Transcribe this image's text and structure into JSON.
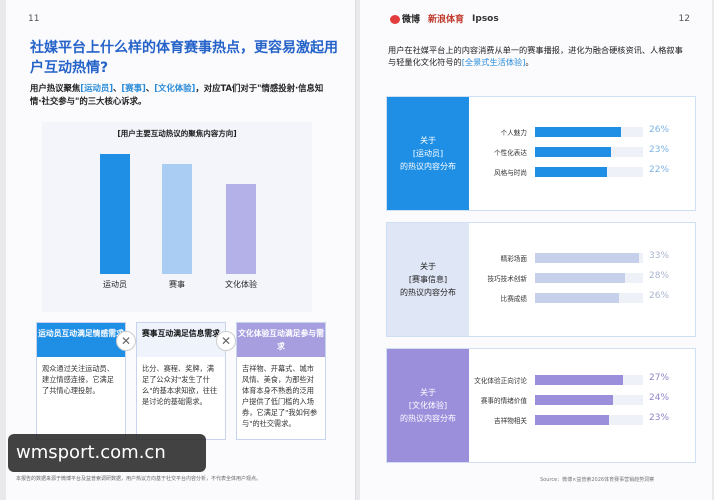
{
  "left": {
    "page_num": "11",
    "title": "社媒平台上什么样的体育赛事热点，更容易激起用户互动热情?",
    "intro_pre": "用户热议聚焦",
    "intro_h1": "[运动员]",
    "intro_sep1": "、",
    "intro_h2": "[赛事]",
    "intro_sep2": "、",
    "intro_h3": "[文化体验]",
    "intro_post": "，对应TA们对于\"情感投射·信息知情·社交参与\"的三大核心诉求。",
    "chart_title": "[用户主要互动热议的聚焦内容方向]",
    "cards": [
      {
        "head": "运动员互动满足情感需求",
        "body": "观众通过关注运动员、建立情感连接，它满足了共情心理投射。"
      },
      {
        "head": "赛事互动满足信息需求",
        "body": "比分、赛程、奖牌，满足了公众对\"发生了什么\"的基本求知欲，往往是讨论的基础需求。"
      },
      {
        "head": "文化体验互动满足参与需求",
        "body": "吉祥物、开幕式、城市风情、美食，为那些对体育本身不熟悉的泛用户提供了低门槛的入场券，它满足了\"我如何参与\"的社交需求。"
      }
    ],
    "footnote": "本报告的数据来源于微博平台及益普索调研数据，用户热议方向基于社交平台内容分析，不代表全体用户观点。",
    "watermark": "wmsport.com.cn"
  },
  "right": {
    "page_num": "12",
    "logo1": "微博",
    "logo2": "新浪体育",
    "logo3": "Ipsos",
    "intro_pre": "用户在社媒平台上的内容消费从单一的赛事播报，进化为融合硬核资讯、人格叙事与轻量化文化符号的",
    "intro_hl": "[全景式生活体验]",
    "intro_post": "。",
    "sections": [
      {
        "tag_line1": "关于",
        "tag_line2": "[运动员]",
        "tag_line3": "的热议内容分布",
        "rows": [
          {
            "label": "个人魅力",
            "value": "26%",
            "pct": 26
          },
          {
            "label": "个性化表达",
            "value": "23%",
            "pct": 23
          },
          {
            "label": "风格与时尚",
            "value": "22%",
            "pct": 22
          }
        ]
      },
      {
        "tag_line1": "关于",
        "tag_line2": "[赛事信息]",
        "tag_line3": "的热议内容分布",
        "rows": [
          {
            "label": "精彩场面",
            "value": "33%",
            "pct": 33
          },
          {
            "label": "技巧技术创新",
            "value": "28%",
            "pct": 28
          },
          {
            "label": "比赛成绩",
            "value": "26%",
            "pct": 26
          }
        ]
      },
      {
        "tag_line1": "关于",
        "tag_line2": "[文化体验]",
        "tag_line3": "的热议内容分布",
        "rows": [
          {
            "label": "文化体验正向讨论",
            "value": "27%",
            "pct": 27
          },
          {
            "label": "赛事的情绪价值",
            "value": "24%",
            "pct": 24
          },
          {
            "label": "吉祥物相关",
            "value": "23%",
            "pct": 23
          }
        ]
      }
    ],
    "source": "Source：微博×益普索2026体育赛事营销趋势洞察",
    "colors": {
      "athlete": "#1f8fe6",
      "event": "#b8c4e6",
      "culture": "#9b8fdc"
    }
  },
  "chart_data": {
    "type": "bar",
    "title": "[用户主要互动热议的聚焦内容方向]",
    "categories": [
      "运动员",
      "赛事",
      "文化体验"
    ],
    "values": [
      100,
      92,
      75
    ],
    "xlabel": "",
    "ylabel": "",
    "ylim": [
      0,
      100
    ],
    "grid": false,
    "legend": "none",
    "colors": [
      "#1f8fe6",
      "#a9cdf3",
      "#b3b1e8"
    ]
  }
}
